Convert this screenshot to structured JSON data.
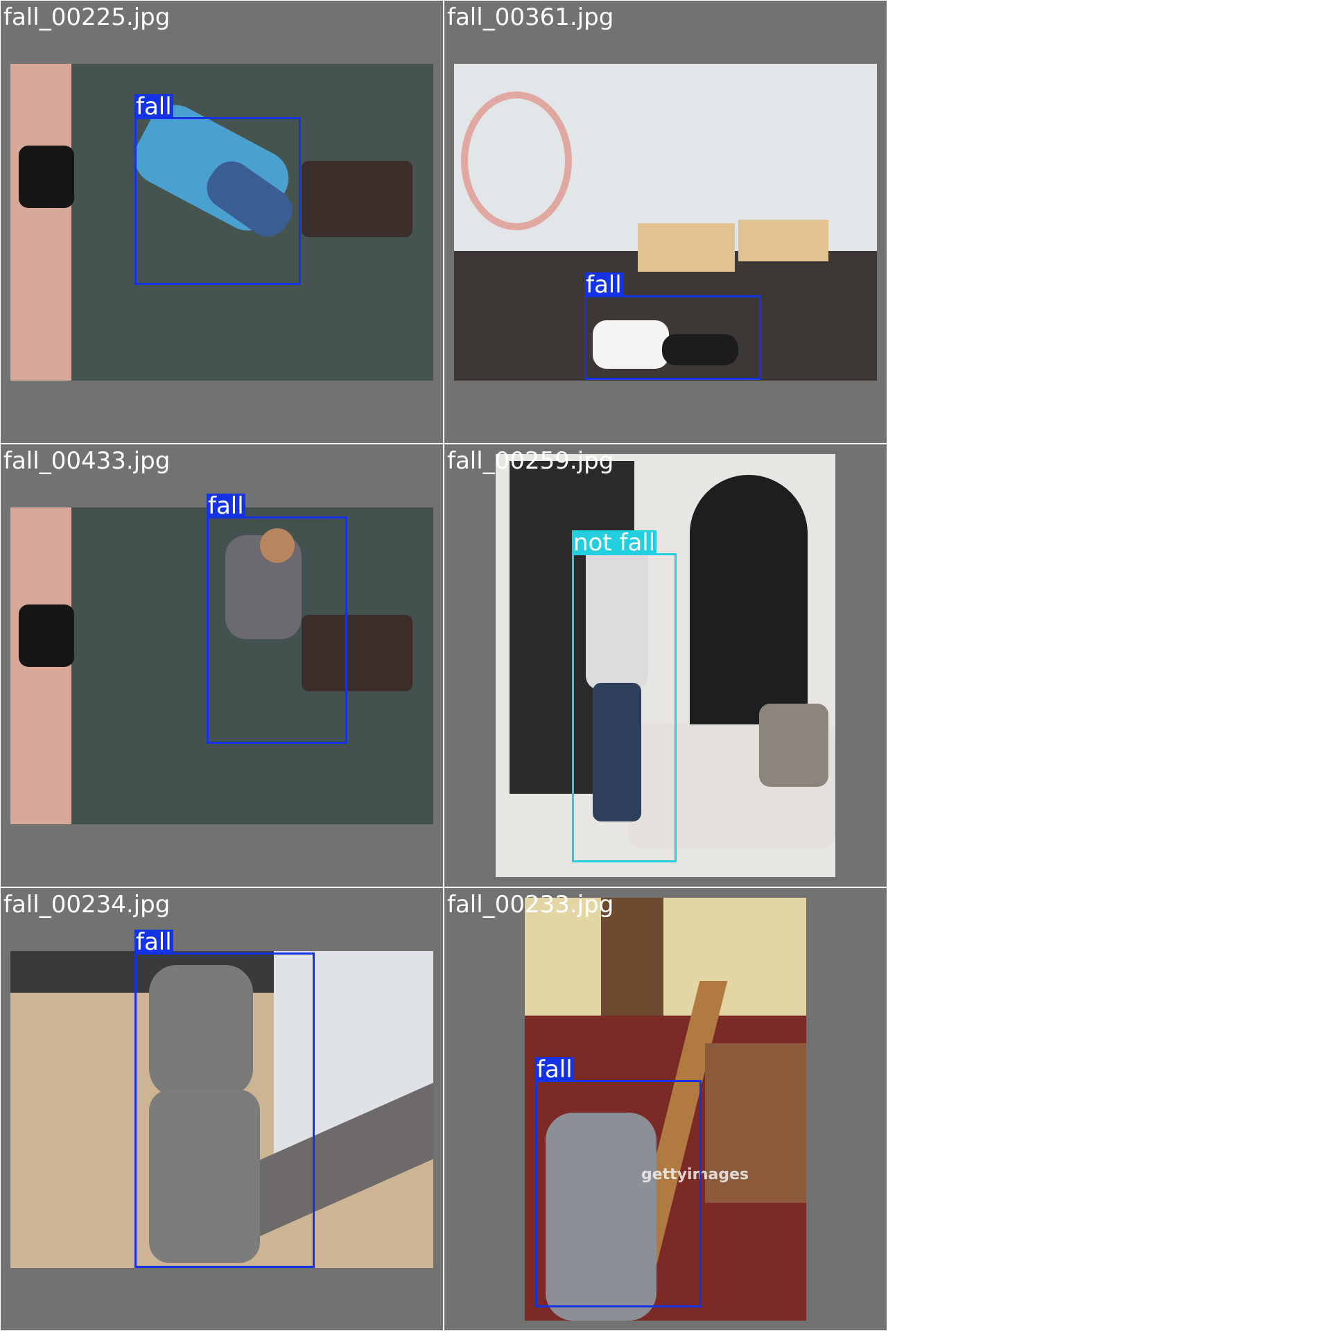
{
  "tiles": [
    {
      "filename": "fall_00225.jpg",
      "detection": "fall"
    },
    {
      "filename": "fall_00361.jpg",
      "detection": "fall"
    },
    {
      "filename": "fall_00433.jpg",
      "detection": "fall"
    },
    {
      "filename": "fall_00259.jpg",
      "detection": "not fall"
    },
    {
      "filename": "fall_00234.jpg",
      "detection": "fall"
    },
    {
      "filename": "fall_00233.jpg",
      "detection": "fall",
      "watermark": "gettyimages"
    }
  ],
  "colors": {
    "tile_background": "#727272",
    "fall_box": "#1432e6",
    "not_fall_box": "#23cfdf",
    "grid_line": "#ffffff"
  }
}
